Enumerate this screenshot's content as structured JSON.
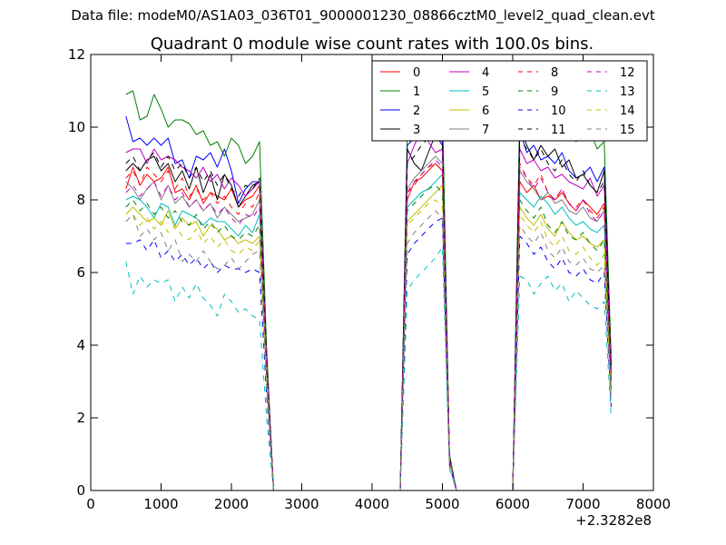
{
  "header": {
    "data_file": "Data file: modeM0/AS1A03_036T01_9000001230_08866cztM0_level2_quad_clean.evt"
  },
  "chart_data": {
    "type": "line",
    "title": "Quadrant 0 module wise count rates with 100.0s bins.",
    "xlabel": "",
    "ylabel": "",
    "x_offset_label": "+2.3282e8",
    "xlim": [
      0,
      8000
    ],
    "ylim": [
      0,
      12
    ],
    "xticks": [
      0,
      1000,
      2000,
      3000,
      4000,
      5000,
      6000,
      7000,
      8000
    ],
    "yticks": [
      0,
      2,
      4,
      6,
      8,
      10,
      12
    ],
    "legend_position": "top-right",
    "x": [
      500,
      600,
      700,
      800,
      900,
      1000,
      1100,
      1200,
      1300,
      1400,
      1500,
      1600,
      1700,
      1800,
      1900,
      2000,
      2100,
      2200,
      2300,
      2400,
      2500,
      2600,
      2700,
      2800,
      2900,
      3000,
      3100,
      3200,
      3300,
      3400,
      3500,
      3600,
      3700,
      3800,
      3900,
      4000,
      4100,
      4200,
      4300,
      4400,
      4500,
      4600,
      4700,
      4800,
      4900,
      5000,
      5100,
      5200,
      5300,
      5400,
      5500,
      5600,
      5700,
      5800,
      5900,
      6000,
      6100,
      6200,
      6300,
      6400,
      6500,
      6600,
      6700,
      6800,
      6900,
      7000,
      7100,
      7200,
      7300,
      7400
    ],
    "series": [
      {
        "name": "0",
        "color": "#ff0000",
        "dash": "solid",
        "values": [
          8.3,
          8.9,
          8.4,
          8.7,
          8.5,
          8.6,
          8.9,
          8.2,
          8.3,
          8.0,
          8.4,
          7.9,
          8.2,
          8.1,
          8.0,
          8.3,
          7.8,
          8.0,
          8.1,
          8.4,
          3.5,
          0,
          0,
          0,
          0,
          0,
          0,
          0,
          0,
          0,
          0,
          0,
          0,
          0,
          0,
          0,
          0,
          0,
          0,
          0,
          8.0,
          8.5,
          8.6,
          8.8,
          9.0,
          8.8,
          0.8,
          0,
          0,
          0,
          0,
          0,
          0,
          0,
          0,
          0,
          8.5,
          8.2,
          8.4,
          8.0,
          8.1,
          8.0,
          8.2,
          7.9,
          7.7,
          8.0,
          7.8,
          7.6,
          7.9,
          3.1
        ]
      },
      {
        "name": "1",
        "color": "#008000",
        "dash": "solid",
        "values": [
          10.9,
          11.0,
          10.2,
          10.3,
          10.9,
          10.5,
          10.0,
          10.2,
          10.2,
          10.1,
          9.8,
          9.9,
          9.5,
          9.6,
          9.2,
          9.7,
          9.5,
          9.0,
          9.2,
          9.6,
          3.9,
          0,
          0,
          0,
          0,
          0,
          0,
          0,
          0,
          0,
          0,
          0,
          0,
          0,
          0,
          0,
          0,
          0,
          0,
          0,
          9.8,
          10.3,
          10.5,
          10.8,
          10.9,
          10.6,
          1.0,
          0,
          0,
          0,
          0,
          0,
          0,
          0,
          0,
          0,
          10.5,
          10.2,
          10.0,
          10.1,
          9.8,
          10.0,
          9.7,
          9.9,
          9.6,
          9.8,
          9.9,
          9.4,
          9.6,
          3.6
        ]
      },
      {
        "name": "2",
        "color": "#0000ff",
        "dash": "solid",
        "values": [
          10.3,
          9.6,
          9.7,
          9.5,
          9.7,
          9.5,
          9.7,
          9.0,
          9.1,
          8.6,
          9.2,
          9.1,
          9.3,
          8.9,
          9.4,
          8.8,
          7.9,
          8.3,
          8.5,
          8.5,
          3.6,
          0,
          0,
          0,
          0,
          0,
          0,
          0,
          0,
          0,
          0,
          0,
          0,
          0,
          0,
          0,
          0,
          0,
          0,
          0,
          9.5,
          9.7,
          9.9,
          10.0,
          9.8,
          9.6,
          0.9,
          0,
          0,
          0,
          0,
          0,
          0,
          0,
          0,
          0,
          9.9,
          9.3,
          9.5,
          9.1,
          9.2,
          9.0,
          9.3,
          8.8,
          8.6,
          8.7,
          8.9,
          8.5,
          8.9,
          3.2
        ]
      },
      {
        "name": "3",
        "color": "#000000",
        "dash": "solid",
        "values": [
          8.8,
          9.0,
          8.8,
          9.1,
          9.2,
          8.8,
          9.0,
          8.5,
          8.8,
          8.3,
          8.9,
          8.2,
          8.7,
          8.0,
          8.7,
          8.4,
          7.8,
          8.1,
          8.4,
          8.5,
          3.5,
          0,
          0,
          0,
          0,
          0,
          0,
          0,
          0,
          0,
          0,
          0,
          0,
          0,
          0,
          0,
          0,
          0,
          0,
          0,
          9.4,
          9.0,
          8.8,
          9.3,
          9.8,
          9.5,
          0.9,
          0,
          0,
          0,
          0,
          0,
          0,
          0,
          0,
          0,
          10.0,
          9.5,
          9.1,
          9.5,
          9.2,
          9.4,
          8.9,
          9.1,
          8.6,
          8.7,
          8.4,
          8.2,
          8.8,
          3.4
        ]
      },
      {
        "name": "4",
        "color": "#bf00bf",
        "dash": "solid",
        "values": [
          9.3,
          9.4,
          9.4,
          9.0,
          9.4,
          9.1,
          9.2,
          9.1,
          8.9,
          8.8,
          8.6,
          8.9,
          8.5,
          8.7,
          8.3,
          8.6,
          8.4,
          8.1,
          8.3,
          8.5,
          3.6,
          0,
          0,
          0,
          0,
          0,
          0,
          0,
          0,
          0,
          0,
          0,
          0,
          0,
          0,
          0,
          0,
          0,
          0,
          0,
          9.0,
          9.5,
          9.9,
          9.6,
          9.3,
          9.4,
          0.9,
          0,
          0,
          0,
          0,
          0,
          0,
          0,
          0,
          0,
          9.4,
          9.0,
          9.1,
          8.8,
          8.9,
          8.6,
          8.7,
          8.5,
          8.4,
          8.3,
          8.6,
          8.1,
          8.4,
          3.3
        ]
      },
      {
        "name": "5",
        "color": "#00bfbf",
        "dash": "solid",
        "values": [
          8.0,
          8.1,
          8.0,
          7.8,
          7.5,
          7.9,
          7.8,
          7.3,
          7.7,
          7.6,
          7.5,
          7.3,
          7.5,
          7.4,
          7.4,
          7.2,
          7.0,
          7.3,
          7.1,
          7.6,
          3.3,
          0,
          0,
          0,
          0,
          0,
          0,
          0,
          0,
          0,
          0,
          0,
          0,
          0,
          0,
          0,
          0,
          0,
          0,
          0,
          7.8,
          8.0,
          8.2,
          8.3,
          8.5,
          8.7,
          0.8,
          0,
          0,
          0,
          0,
          0,
          0,
          0,
          0,
          0,
          8.2,
          8.0,
          7.8,
          8.1,
          7.9,
          7.6,
          7.8,
          7.5,
          7.3,
          7.4,
          7.2,
          7.1,
          7.3,
          2.9
        ]
      },
      {
        "name": "6",
        "color": "#bfbf00",
        "dash": "solid",
        "values": [
          7.6,
          7.8,
          7.6,
          7.4,
          7.5,
          7.3,
          7.7,
          7.2,
          7.5,
          7.3,
          7.4,
          7.0,
          7.3,
          7.2,
          6.9,
          7.0,
          6.8,
          6.9,
          6.8,
          7.0,
          3.1,
          0,
          0,
          0,
          0,
          0,
          0,
          0,
          0,
          0,
          0,
          0,
          0,
          0,
          0,
          0,
          0,
          0,
          0,
          0,
          7.4,
          7.6,
          7.8,
          8.0,
          8.2,
          8.4,
          0.8,
          0,
          0,
          0,
          0,
          0,
          0,
          0,
          0,
          0,
          7.8,
          7.5,
          7.3,
          7.6,
          7.2,
          7.0,
          7.4,
          7.1,
          6.9,
          7.0,
          6.8,
          6.7,
          6.9,
          2.7
        ]
      },
      {
        "name": "7",
        "color": "#808080",
        "dash": "solid",
        "values": [
          8.5,
          8.3,
          8.0,
          8.3,
          8.5,
          8.0,
          8.4,
          7.9,
          8.1,
          7.8,
          8.0,
          7.7,
          7.9,
          7.5,
          7.8,
          7.6,
          7.4,
          7.5,
          7.6,
          8.0,
          3.4,
          0,
          0,
          0,
          0,
          0,
          0,
          0,
          0,
          0,
          0,
          0,
          0,
          0,
          0,
          0,
          0,
          0,
          0,
          0,
          8.3,
          8.6,
          8.8,
          9.0,
          9.2,
          9.0,
          0.9,
          0,
          0,
          0,
          0,
          0,
          0,
          0,
          0,
          0,
          8.8,
          8.5,
          8.3,
          8.0,
          8.2,
          7.9,
          8.0,
          7.7,
          7.6,
          7.8,
          7.5,
          7.4,
          7.7,
          3.0
        ]
      },
      {
        "name": "8",
        "color": "#ff0000",
        "dash": "dash",
        "values": [
          8.6,
          8.8,
          8.4,
          8.9,
          8.7,
          8.5,
          8.8,
          8.3,
          8.6,
          8.1,
          8.3,
          8.0,
          8.2,
          7.9,
          8.1,
          7.8,
          7.6,
          7.9,
          7.8,
          8.2,
          3.4,
          0,
          0,
          0,
          0,
          0,
          0,
          0,
          0,
          0,
          0,
          0,
          0,
          0,
          0,
          0,
          0,
          0,
          0,
          0,
          8.2,
          8.4,
          8.7,
          8.9,
          9.0,
          8.8,
          0.9,
          0,
          0,
          0,
          0,
          0,
          0,
          0,
          0,
          0,
          9.0,
          8.6,
          8.4,
          8.7,
          8.2,
          8.0,
          8.3,
          7.9,
          7.8,
          8.0,
          7.7,
          7.5,
          7.8,
          3.1
        ]
      },
      {
        "name": "9",
        "color": "#008000",
        "dash": "dash",
        "values": [
          7.8,
          8.0,
          7.7,
          7.9,
          7.6,
          7.8,
          7.5,
          7.7,
          7.4,
          7.3,
          7.6,
          7.2,
          7.4,
          7.1,
          7.3,
          7.0,
          6.9,
          7.1,
          7.0,
          7.3,
          3.2,
          0,
          0,
          0,
          0,
          0,
          0,
          0,
          0,
          0,
          0,
          0,
          0,
          0,
          0,
          0,
          0,
          0,
          0,
          0,
          7.7,
          7.9,
          8.1,
          8.3,
          8.4,
          8.2,
          0.8,
          0,
          0,
          0,
          0,
          0,
          0,
          0,
          0,
          0,
          8.0,
          7.7,
          7.5,
          7.8,
          7.3,
          7.1,
          7.4,
          7.0,
          6.9,
          7.1,
          6.8,
          6.6,
          6.9,
          2.8
        ]
      },
      {
        "name": "10",
        "color": "#0000ff",
        "dash": "dash",
        "values": [
          6.8,
          6.8,
          6.9,
          6.6,
          6.9,
          6.4,
          6.6,
          6.3,
          6.5,
          6.2,
          6.4,
          6.1,
          6.3,
          6.0,
          6.2,
          6.1,
          6.1,
          6.0,
          6.1,
          6.0,
          2.6,
          0,
          0,
          0,
          0,
          0,
          0,
          0,
          0,
          0,
          0,
          0,
          0,
          0,
          0,
          0,
          0,
          0,
          0,
          0,
          6.5,
          6.8,
          7.0,
          7.2,
          7.4,
          7.5,
          0.7,
          0,
          0,
          0,
          0,
          0,
          0,
          0,
          0,
          0,
          7.0,
          6.8,
          6.5,
          6.7,
          6.3,
          6.1,
          6.4,
          6.0,
          5.9,
          6.1,
          5.8,
          5.7,
          6.0,
          2.3
        ]
      },
      {
        "name": "11",
        "color": "#000000",
        "dash": "dash",
        "values": [
          9.0,
          9.2,
          8.8,
          9.1,
          9.3,
          8.9,
          9.2,
          8.8,
          9.0,
          8.6,
          8.9,
          8.5,
          8.8,
          8.4,
          8.7,
          8.3,
          8.1,
          8.4,
          8.3,
          8.6,
          3.6,
          0,
          0,
          0,
          0,
          0,
          0,
          0,
          0,
          0,
          0,
          0,
          0,
          0,
          0,
          0,
          0,
          0,
          0,
          0,
          9.0,
          9.2,
          9.5,
          9.7,
          9.9,
          9.7,
          0.9,
          0,
          0,
          0,
          0,
          0,
          0,
          0,
          0,
          0,
          9.7,
          9.4,
          9.1,
          9.4,
          9.0,
          8.8,
          9.1,
          8.7,
          8.5,
          8.8,
          8.4,
          8.2,
          8.5,
          3.3
        ]
      },
      {
        "name": "12",
        "color": "#bf00bf",
        "dash": "dash",
        "values": [
          8.2,
          8.4,
          8.1,
          8.3,
          8.5,
          8.1,
          8.4,
          8.0,
          8.2,
          7.8,
          8.0,
          7.7,
          7.9,
          7.6,
          7.8,
          7.5,
          7.3,
          7.6,
          7.5,
          7.8,
          3.3,
          0,
          0,
          0,
          0,
          0,
          0,
          0,
          0,
          0,
          0,
          0,
          0,
          0,
          0,
          0,
          0,
          0,
          0,
          0,
          8.2,
          8.5,
          8.7,
          8.9,
          9.1,
          8.9,
          0.9,
          0,
          0,
          0,
          0,
          0,
          0,
          0,
          0,
          0,
          8.9,
          8.6,
          8.3,
          8.6,
          8.2,
          8.0,
          8.3,
          7.9,
          7.7,
          8.0,
          7.6,
          7.4,
          7.7,
          3.0
        ]
      },
      {
        "name": "13",
        "color": "#00bfbf",
        "dash": "dash",
        "values": [
          6.3,
          5.4,
          5.9,
          5.6,
          5.8,
          5.7,
          5.8,
          5.2,
          5.6,
          5.3,
          5.7,
          5.3,
          5.1,
          4.8,
          5.4,
          5.2,
          4.9,
          5.0,
          4.8,
          4.7,
          2.0,
          0,
          0,
          0,
          0,
          0,
          0,
          0,
          0,
          0,
          0,
          0,
          0,
          0,
          0,
          0,
          0,
          0,
          0,
          0,
          5.5,
          5.8,
          6.0,
          6.2,
          6.4,
          6.7,
          0.6,
          0,
          0,
          0,
          0,
          0,
          0,
          0,
          0,
          0,
          5.9,
          5.8,
          5.4,
          5.7,
          5.9,
          5.5,
          5.7,
          5.2,
          5.5,
          5.3,
          5.1,
          5.0,
          5.2,
          2.0
        ]
      },
      {
        "name": "14",
        "color": "#bfbf00",
        "dash": "dash",
        "values": [
          7.4,
          7.6,
          7.3,
          7.5,
          7.2,
          7.4,
          7.1,
          7.3,
          7.0,
          6.9,
          7.2,
          6.8,
          7.0,
          6.7,
          6.9,
          6.6,
          6.5,
          6.7,
          6.6,
          6.9,
          3.0,
          0,
          0,
          0,
          0,
          0,
          0,
          0,
          0,
          0,
          0,
          0,
          0,
          0,
          0,
          0,
          0,
          0,
          0,
          0,
          7.3,
          7.5,
          7.7,
          7.9,
          8.0,
          7.8,
          0.8,
          0,
          0,
          0,
          0,
          0,
          0,
          0,
          0,
          0,
          7.6,
          7.3,
          7.1,
          7.4,
          6.9,
          6.7,
          7.0,
          6.6,
          6.5,
          6.7,
          6.4,
          6.2,
          6.5,
          2.6
        ]
      },
      {
        "name": "15",
        "color": "#808080",
        "dash": "dash",
        "values": [
          7.4,
          7.6,
          7.0,
          7.2,
          6.9,
          7.1,
          6.6,
          6.9,
          6.3,
          6.5,
          6.3,
          6.6,
          6.3,
          6.1,
          6.2,
          6.4,
          6.1,
          6.3,
          6.5,
          6.6,
          2.8,
          0,
          0,
          0,
          0,
          0,
          0,
          0,
          0,
          0,
          0,
          0,
          0,
          0,
          0,
          0,
          0,
          0,
          0,
          0,
          6.8,
          7.1,
          7.3,
          7.5,
          7.7,
          7.5,
          0.8,
          0,
          0,
          0,
          0,
          0,
          0,
          0,
          0,
          0,
          7.3,
          7.0,
          6.8,
          7.1,
          6.6,
          6.4,
          6.7,
          6.3,
          6.2,
          6.4,
          6.1,
          6.0,
          6.2,
          2.5
        ]
      }
    ]
  }
}
